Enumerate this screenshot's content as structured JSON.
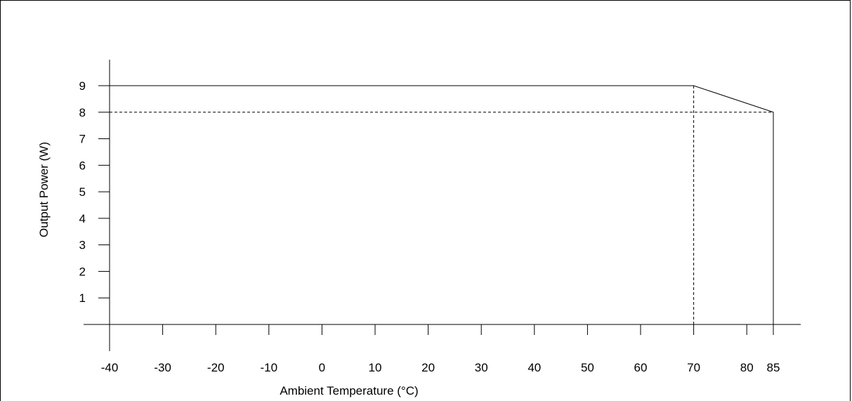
{
  "chart_data": {
    "type": "line",
    "xlabel": "Ambient Temperature (°C)",
    "ylabel": "Output Power (W)",
    "xlim": [
      -40,
      85
    ],
    "ylim": [
      0,
      9
    ],
    "x_ticks": [
      -40,
      -30,
      -20,
      -10,
      0,
      10,
      20,
      30,
      40,
      50,
      60,
      70,
      80,
      85
    ],
    "y_ticks": [
      1,
      2,
      3,
      4,
      5,
      6,
      7,
      8,
      9
    ],
    "series": [
      {
        "x": [
          -40,
          70,
          85,
          85
        ],
        "y": [
          9,
          9,
          8,
          0
        ],
        "style": "solid"
      }
    ],
    "reference_lines": [
      {
        "x": [
          -40,
          85
        ],
        "y": [
          8,
          8
        ],
        "style": "dashed"
      },
      {
        "x": [
          70,
          70
        ],
        "y": [
          9,
          0
        ],
        "style": "dashed"
      }
    ],
    "grid": false,
    "legend": "none"
  }
}
